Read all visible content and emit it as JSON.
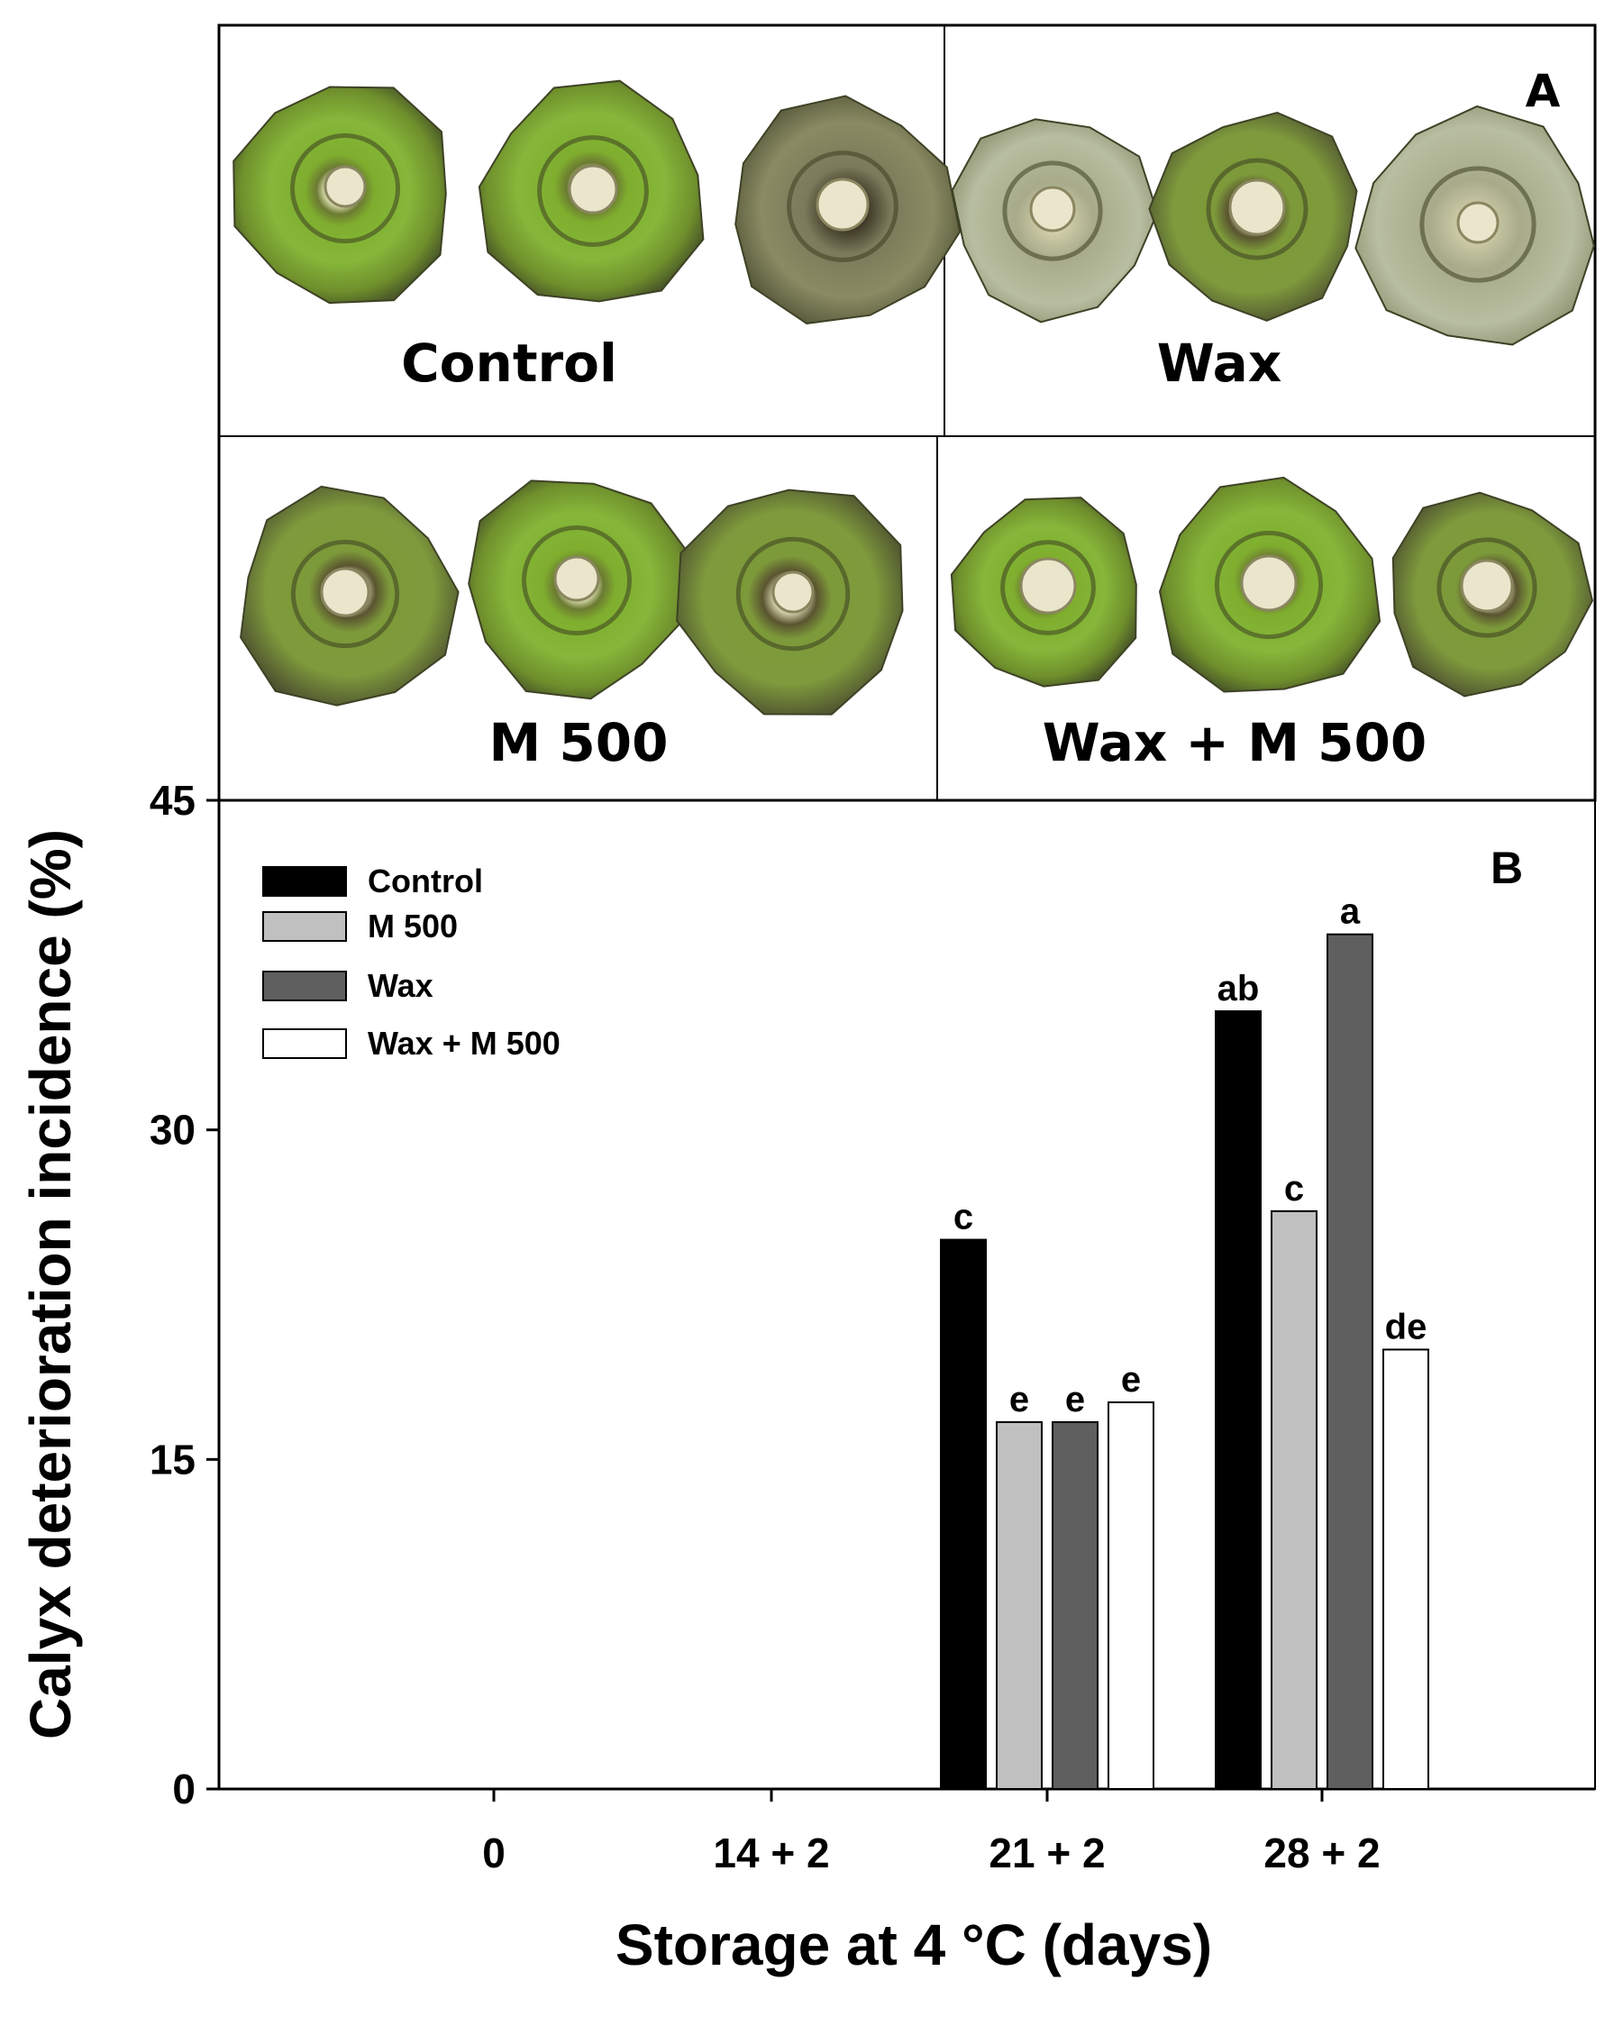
{
  "panel_a": {
    "letter": "A",
    "captions": [
      "Control",
      "Wax",
      "M 500",
      "Wax + M 500"
    ]
  },
  "colors": {
    "control": "#000000",
    "m500": "#c0c0c0",
    "wax": "#5f5f5f",
    "wax_m500": "#ffffff"
  },
  "chart_data": {
    "type": "bar",
    "panel_letter": "B",
    "title": "",
    "xlabel": "Storage at 4 °C (days)",
    "ylabel": "Calyx deterioration incidence (%)",
    "ylim": [
      0,
      45
    ],
    "yticks": [
      0,
      15,
      30,
      45
    ],
    "categories": [
      "0",
      "14 + 2",
      "21 + 2",
      "28 + 2"
    ],
    "legend_position": "top-left",
    "series": [
      {
        "name": "Control",
        "color": "#000000",
        "values": [
          0,
          0,
          25.0,
          35.4
        ],
        "labels": [
          "",
          "",
          "c",
          "ab"
        ]
      },
      {
        "name": "M 500",
        "color": "#c0c0c0",
        "values": [
          0,
          0,
          16.7,
          26.3
        ],
        "labels": [
          "",
          "",
          "e",
          "c"
        ]
      },
      {
        "name": "Wax",
        "color": "#5f5f5f",
        "values": [
          0,
          0,
          16.7,
          38.9
        ],
        "labels": [
          "",
          "",
          "e",
          "a"
        ]
      },
      {
        "name": "Wax + M 500",
        "color": "#ffffff",
        "values": [
          0,
          0,
          17.6,
          20.0
        ],
        "labels": [
          "",
          "",
          "e",
          "de"
        ]
      }
    ]
  }
}
